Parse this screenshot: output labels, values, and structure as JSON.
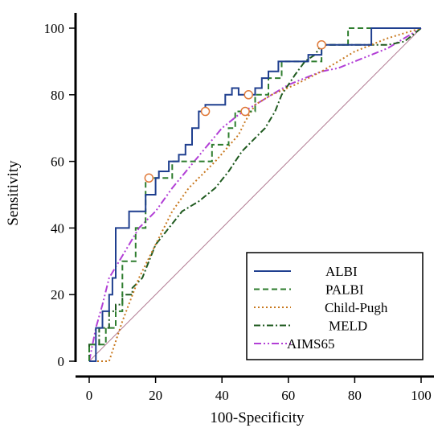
{
  "chart_data": {
    "type": "line",
    "title": "",
    "xlabel": "100-Specificity",
    "ylabel": "Sensitivity",
    "xlim": [
      0,
      100
    ],
    "ylim": [
      0,
      100
    ],
    "xticks": [
      "0",
      "20",
      "40",
      "60",
      "80",
      "100"
    ],
    "yticks": [
      "0",
      "20",
      "40",
      "60",
      "80",
      "100"
    ],
    "grid": false,
    "legend_position": "bottom-right",
    "reference_line": {
      "x": [
        0,
        100
      ],
      "y": [
        0,
        100
      ],
      "color": "#b07890"
    },
    "series": [
      {
        "name": "ALBI",
        "style": "solid",
        "color": "#1f3f8f",
        "x": [
          0,
          2,
          2,
          4,
          4,
          6,
          6,
          7,
          7,
          8,
          8,
          12,
          12,
          17,
          17,
          20,
          20,
          21,
          21,
          24,
          24,
          27,
          27,
          29,
          29,
          31,
          31,
          33,
          33,
          35,
          35,
          41,
          41,
          43,
          43,
          45,
          45,
          50,
          50,
          52,
          52,
          54,
          54,
          57,
          57,
          66,
          66,
          70,
          70,
          85,
          85,
          100
        ],
        "y": [
          0,
          0,
          10,
          10,
          15,
          15,
          20,
          20,
          25,
          25,
          40,
          40,
          45,
          45,
          50,
          50,
          55,
          55,
          57,
          57,
          60,
          60,
          62,
          62,
          65,
          65,
          70,
          70,
          75,
          75,
          77,
          77,
          80,
          80,
          82,
          82,
          80,
          80,
          82,
          82,
          85,
          85,
          87,
          87,
          90,
          90,
          92,
          92,
          95,
          95,
          100,
          100
        ]
      },
      {
        "name": "PALBI",
        "style": "dashed",
        "color": "#2e7d2e",
        "x": [
          0,
          0,
          5,
          5,
          8,
          8,
          10,
          10,
          14,
          14,
          17,
          17,
          25,
          25,
          37,
          37,
          42,
          42,
          44,
          44,
          50,
          50,
          54,
          54,
          58,
          58,
          70,
          70,
          78,
          78,
          100
        ],
        "y": [
          0,
          5,
          5,
          10,
          10,
          15,
          15,
          30,
          30,
          40,
          40,
          55,
          55,
          60,
          60,
          65,
          65,
          70,
          70,
          75,
          75,
          80,
          80,
          85,
          85,
          90,
          90,
          95,
          95,
          100,
          100
        ]
      },
      {
        "name": "Child-Pugh",
        "style": "dotted",
        "color": "#c8781e",
        "x": [
          0,
          6,
          10,
          15,
          20,
          25,
          30,
          38,
          45,
          47,
          50,
          55,
          62,
          70,
          80,
          90,
          100
        ],
        "y": [
          0,
          0,
          12,
          25,
          35,
          45,
          52,
          60,
          68,
          72,
          77,
          80,
          83,
          87,
          93,
          97,
          100
        ]
      },
      {
        "name": "MELD",
        "style": "dashdot",
        "color": "#1f5a1f",
        "x": [
          0,
          0,
          3,
          3,
          6,
          6,
          8,
          8,
          10,
          10,
          13,
          13,
          16,
          18,
          20,
          24,
          28,
          33,
          38,
          42,
          46,
          50,
          53,
          56,
          58,
          60,
          62,
          65,
          68,
          70,
          80,
          90,
          95,
          100
        ],
        "y": [
          0,
          5,
          5,
          10,
          10,
          15,
          15,
          17,
          17,
          20,
          20,
          22,
          25,
          30,
          35,
          40,
          45,
          48,
          52,
          57,
          63,
          67,
          70,
          75,
          80,
          83,
          86,
          90,
          92,
          95,
          95,
          95,
          96,
          100
        ]
      },
      {
        "name": "AIMS65",
        "style": "dashdotdot",
        "color": "#b23fd6",
        "x": [
          0,
          2,
          4,
          6,
          9,
          12,
          15,
          20,
          25,
          30,
          35,
          40,
          45,
          50,
          55,
          60,
          65,
          70,
          75,
          80,
          85,
          90,
          95,
          100
        ],
        "y": [
          0,
          10,
          17,
          25,
          30,
          35,
          40,
          45,
          52,
          58,
          64,
          70,
          74,
          77,
          80,
          83,
          85,
          87,
          88,
          90,
          92,
          94,
          97,
          100
        ]
      }
    ],
    "markers": [
      {
        "x": 18,
        "y": 55
      },
      {
        "x": 35,
        "y": 75
      },
      {
        "x": 47,
        "y": 75
      },
      {
        "x": 48,
        "y": 80
      },
      {
        "x": 70,
        "y": 95
      }
    ],
    "marker_color": "#e07a3a"
  }
}
